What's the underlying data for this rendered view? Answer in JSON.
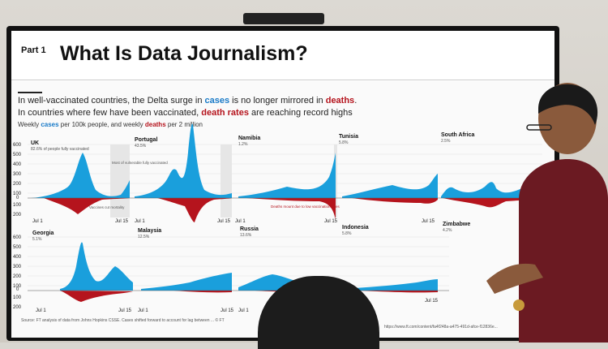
{
  "slide": {
    "part": "Part 1",
    "title": "What Is Data Journalism?",
    "headline1": [
      "In well-vaccinated countries, the Delta surge in ",
      "cases",
      " is no longer mirrored in ",
      "deaths",
      "."
    ],
    "headline2": [
      "In countries where few have been vaccinated, ",
      "death rates",
      " are reaching record highs"
    ],
    "subtitle": [
      "Weekly ",
      "cases",
      " per 100k people, and weekly ",
      "deaths",
      " per 2 million"
    ],
    "source": "Source: FT analysis of data from Johns Hopkins CSSE. Cases shifted forward to account for lag between ... © FT",
    "url": "https://www.ft.com/content/fa4f248a-a475-491d-afce-f12836e..."
  },
  "colors": {
    "cases": "#1a9fdc",
    "deaths": "#b5141d"
  },
  "countries": [
    {
      "name": "UK",
      "pct": "82.6% of people fully vaccinated"
    },
    {
      "name": "Portugal",
      "pct": "43.5%"
    },
    {
      "name": "Namibia",
      "pct": "1.2%"
    },
    {
      "name": "Tunisia",
      "pct": "5.8%"
    },
    {
      "name": "South Africa",
      "pct": "2.5%"
    },
    {
      "name": "Georgia",
      "pct": "5.1%"
    },
    {
      "name": "Malaysia",
      "pct": "12.5%"
    },
    {
      "name": "Russia",
      "pct": "13.6%"
    },
    {
      "name": "Indonesia",
      "pct": "5.8%"
    },
    {
      "name": "Zimbabwe",
      "pct": "4.2%"
    }
  ],
  "annotations": {
    "uk_1": "Most of vulnerable fully vaccinated",
    "uk_2": "Vaccines cut mortality",
    "namibia": "Deaths mount due to low vaccination rates"
  },
  "axis": {
    "ticks_row1": [
      "600",
      "500",
      "400",
      "300",
      "200",
      "100",
      "0",
      "100",
      "200"
    ],
    "x_start": "Jul 1",
    "x_end": "Jul 15"
  }
}
